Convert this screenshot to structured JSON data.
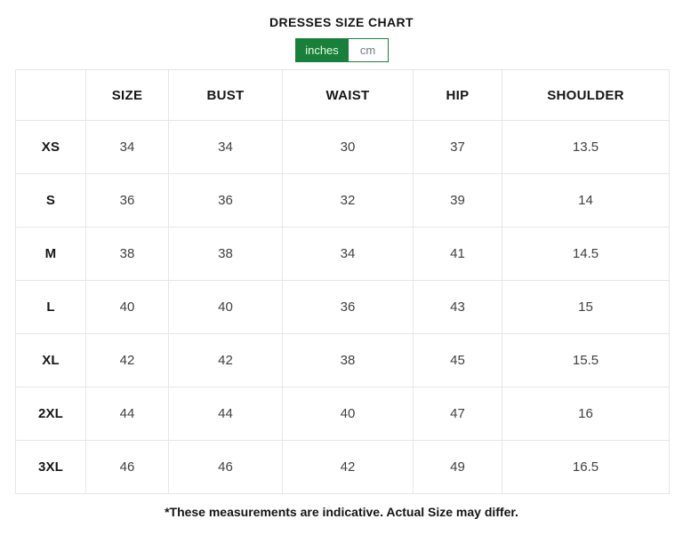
{
  "page": {
    "title": "DRESSES SIZE CHART",
    "footnote": "*These measurements are indicative. Actual Size may differ."
  },
  "unit_toggle": {
    "selected": "inches",
    "options": [
      {
        "label": "inches",
        "selected": true
      },
      {
        "label": "cm",
        "selected": false
      }
    ]
  },
  "colors": {
    "accent_green": "#17813B",
    "toggle_selected_text": "#EFF7EC",
    "toggle_unselected_text": "#707A82",
    "table_border": "#E6E6E6",
    "heading_text": "#161616",
    "value_text": "#404040"
  },
  "chart_data": {
    "type": "table",
    "title": "DRESSES SIZE CHART",
    "unit": "inches",
    "columns": [
      "",
      "SIZE",
      "BUST",
      "WAIST",
      "HIP",
      "SHOULDER"
    ],
    "rows": [
      {
        "label": "XS",
        "values": [
          "34",
          "34",
          "30",
          "37",
          "13.5"
        ]
      },
      {
        "label": "S",
        "values": [
          "36",
          "36",
          "32",
          "39",
          "14"
        ]
      },
      {
        "label": "M",
        "values": [
          "38",
          "38",
          "34",
          "41",
          "14.5"
        ]
      },
      {
        "label": "L",
        "values": [
          "40",
          "40",
          "36",
          "43",
          "15"
        ]
      },
      {
        "label": "XL",
        "values": [
          "42",
          "42",
          "38",
          "45",
          "15.5"
        ]
      },
      {
        "label": "2XL",
        "values": [
          "44",
          "44",
          "40",
          "47",
          "16"
        ]
      },
      {
        "label": "3XL",
        "values": [
          "46",
          "46",
          "42",
          "49",
          "16.5"
        ]
      }
    ]
  }
}
